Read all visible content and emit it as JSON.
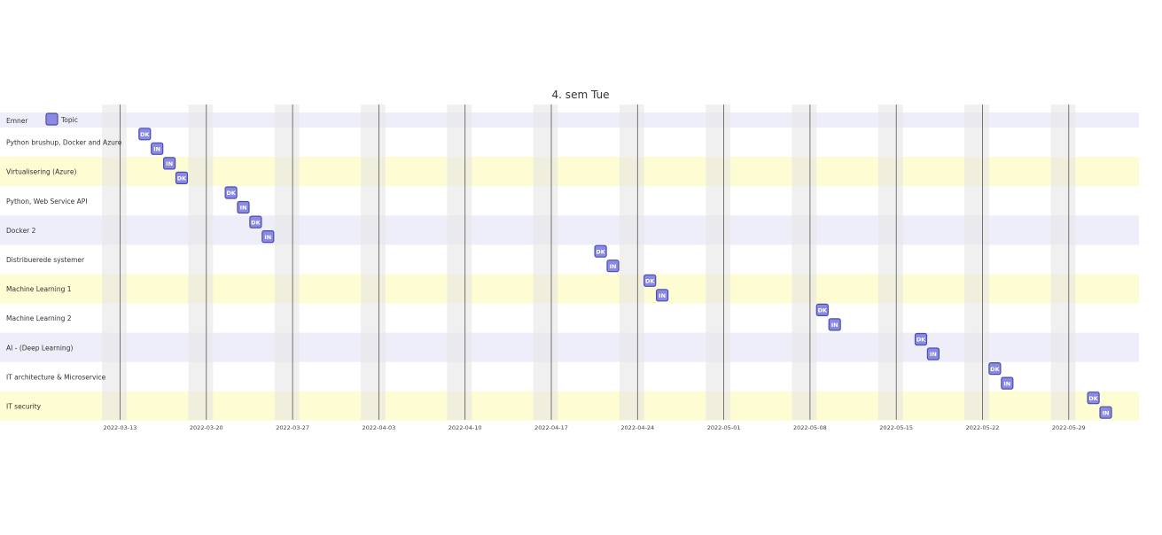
{
  "colors": {
    "row_lavender": "#eeeefb",
    "row_yellow": "#fefcd2",
    "row_white": "#ffffff",
    "weekend_band": "#e6e6e6",
    "week_line": "#555555",
    "task_fill": "#8a8ae0",
    "task_stroke": "#4b4bb8"
  },
  "chart_data": {
    "type": "gantt",
    "title": "4. sem Tue",
    "legend": {
      "label": "Topic",
      "placement": "top-left"
    },
    "header_row": "Emner",
    "rows": [
      {
        "label": "Python brushup, Docker and Azure",
        "band": "white"
      },
      {
        "label": "Virtualisering (Azure)",
        "band": "yellow"
      },
      {
        "label": "Python, Web Service API",
        "band": "white"
      },
      {
        "label": "Docker 2",
        "band": "lavender"
      },
      {
        "label": "Distribuerede systemer",
        "band": "white"
      },
      {
        "label": "Machine Learning 1",
        "band": "yellow"
      },
      {
        "label": "Machine Learning 2",
        "band": "white"
      },
      {
        "label": "AI - (Deep Learning)",
        "band": "lavender"
      },
      {
        "label": "IT architecture & Microservice",
        "band": "white"
      },
      {
        "label": "IT security",
        "band": "yellow"
      }
    ],
    "x_domain": [
      "2022-03-07",
      "2022-06-03"
    ],
    "tick_dates": [
      "2022-03-13",
      "2022-03-20",
      "2022-03-27",
      "2022-04-03",
      "2022-04-10",
      "2022-04-17",
      "2022-04-24",
      "2022-05-01",
      "2022-05-08",
      "2022-05-15",
      "2022-05-22",
      "2022-05-29"
    ],
    "weekend_starts": [
      "2022-03-12",
      "2022-03-19",
      "2022-03-26",
      "2022-04-02",
      "2022-04-09",
      "2022-04-16",
      "2022-04-23",
      "2022-04-30",
      "2022-05-07",
      "2022-05-14",
      "2022-05-21",
      "2022-05-28"
    ],
    "tasks": [
      {
        "row": 0,
        "label": "DK",
        "date": "2022-03-15"
      },
      {
        "row": 0,
        "label": "IN",
        "date": "2022-03-16"
      },
      {
        "row": 1,
        "label": "IN",
        "date": "2022-03-17"
      },
      {
        "row": 1,
        "label": "DK",
        "date": "2022-03-18"
      },
      {
        "row": 2,
        "label": "DK",
        "date": "2022-03-22"
      },
      {
        "row": 2,
        "label": "IN",
        "date": "2022-03-23"
      },
      {
        "row": 3,
        "label": "DK",
        "date": "2022-03-24"
      },
      {
        "row": 3,
        "label": "IN",
        "date": "2022-03-25"
      },
      {
        "row": 4,
        "label": "DK",
        "date": "2022-04-21"
      },
      {
        "row": 4,
        "label": "IN",
        "date": "2022-04-22"
      },
      {
        "row": 5,
        "label": "DK",
        "date": "2022-04-25"
      },
      {
        "row": 5,
        "label": "IN",
        "date": "2022-04-26"
      },
      {
        "row": 6,
        "label": "DK",
        "date": "2022-05-09"
      },
      {
        "row": 6,
        "label": "IN",
        "date": "2022-05-10"
      },
      {
        "row": 7,
        "label": "DK",
        "date": "2022-05-17"
      },
      {
        "row": 7,
        "label": "IN",
        "date": "2022-05-18"
      },
      {
        "row": 8,
        "label": "DK",
        "date": "2022-05-23"
      },
      {
        "row": 8,
        "label": "IN",
        "date": "2022-05-24"
      },
      {
        "row": 9,
        "label": "DK",
        "date": "2022-05-31"
      },
      {
        "row": 9,
        "label": "IN",
        "date": "2022-06-01"
      }
    ]
  }
}
